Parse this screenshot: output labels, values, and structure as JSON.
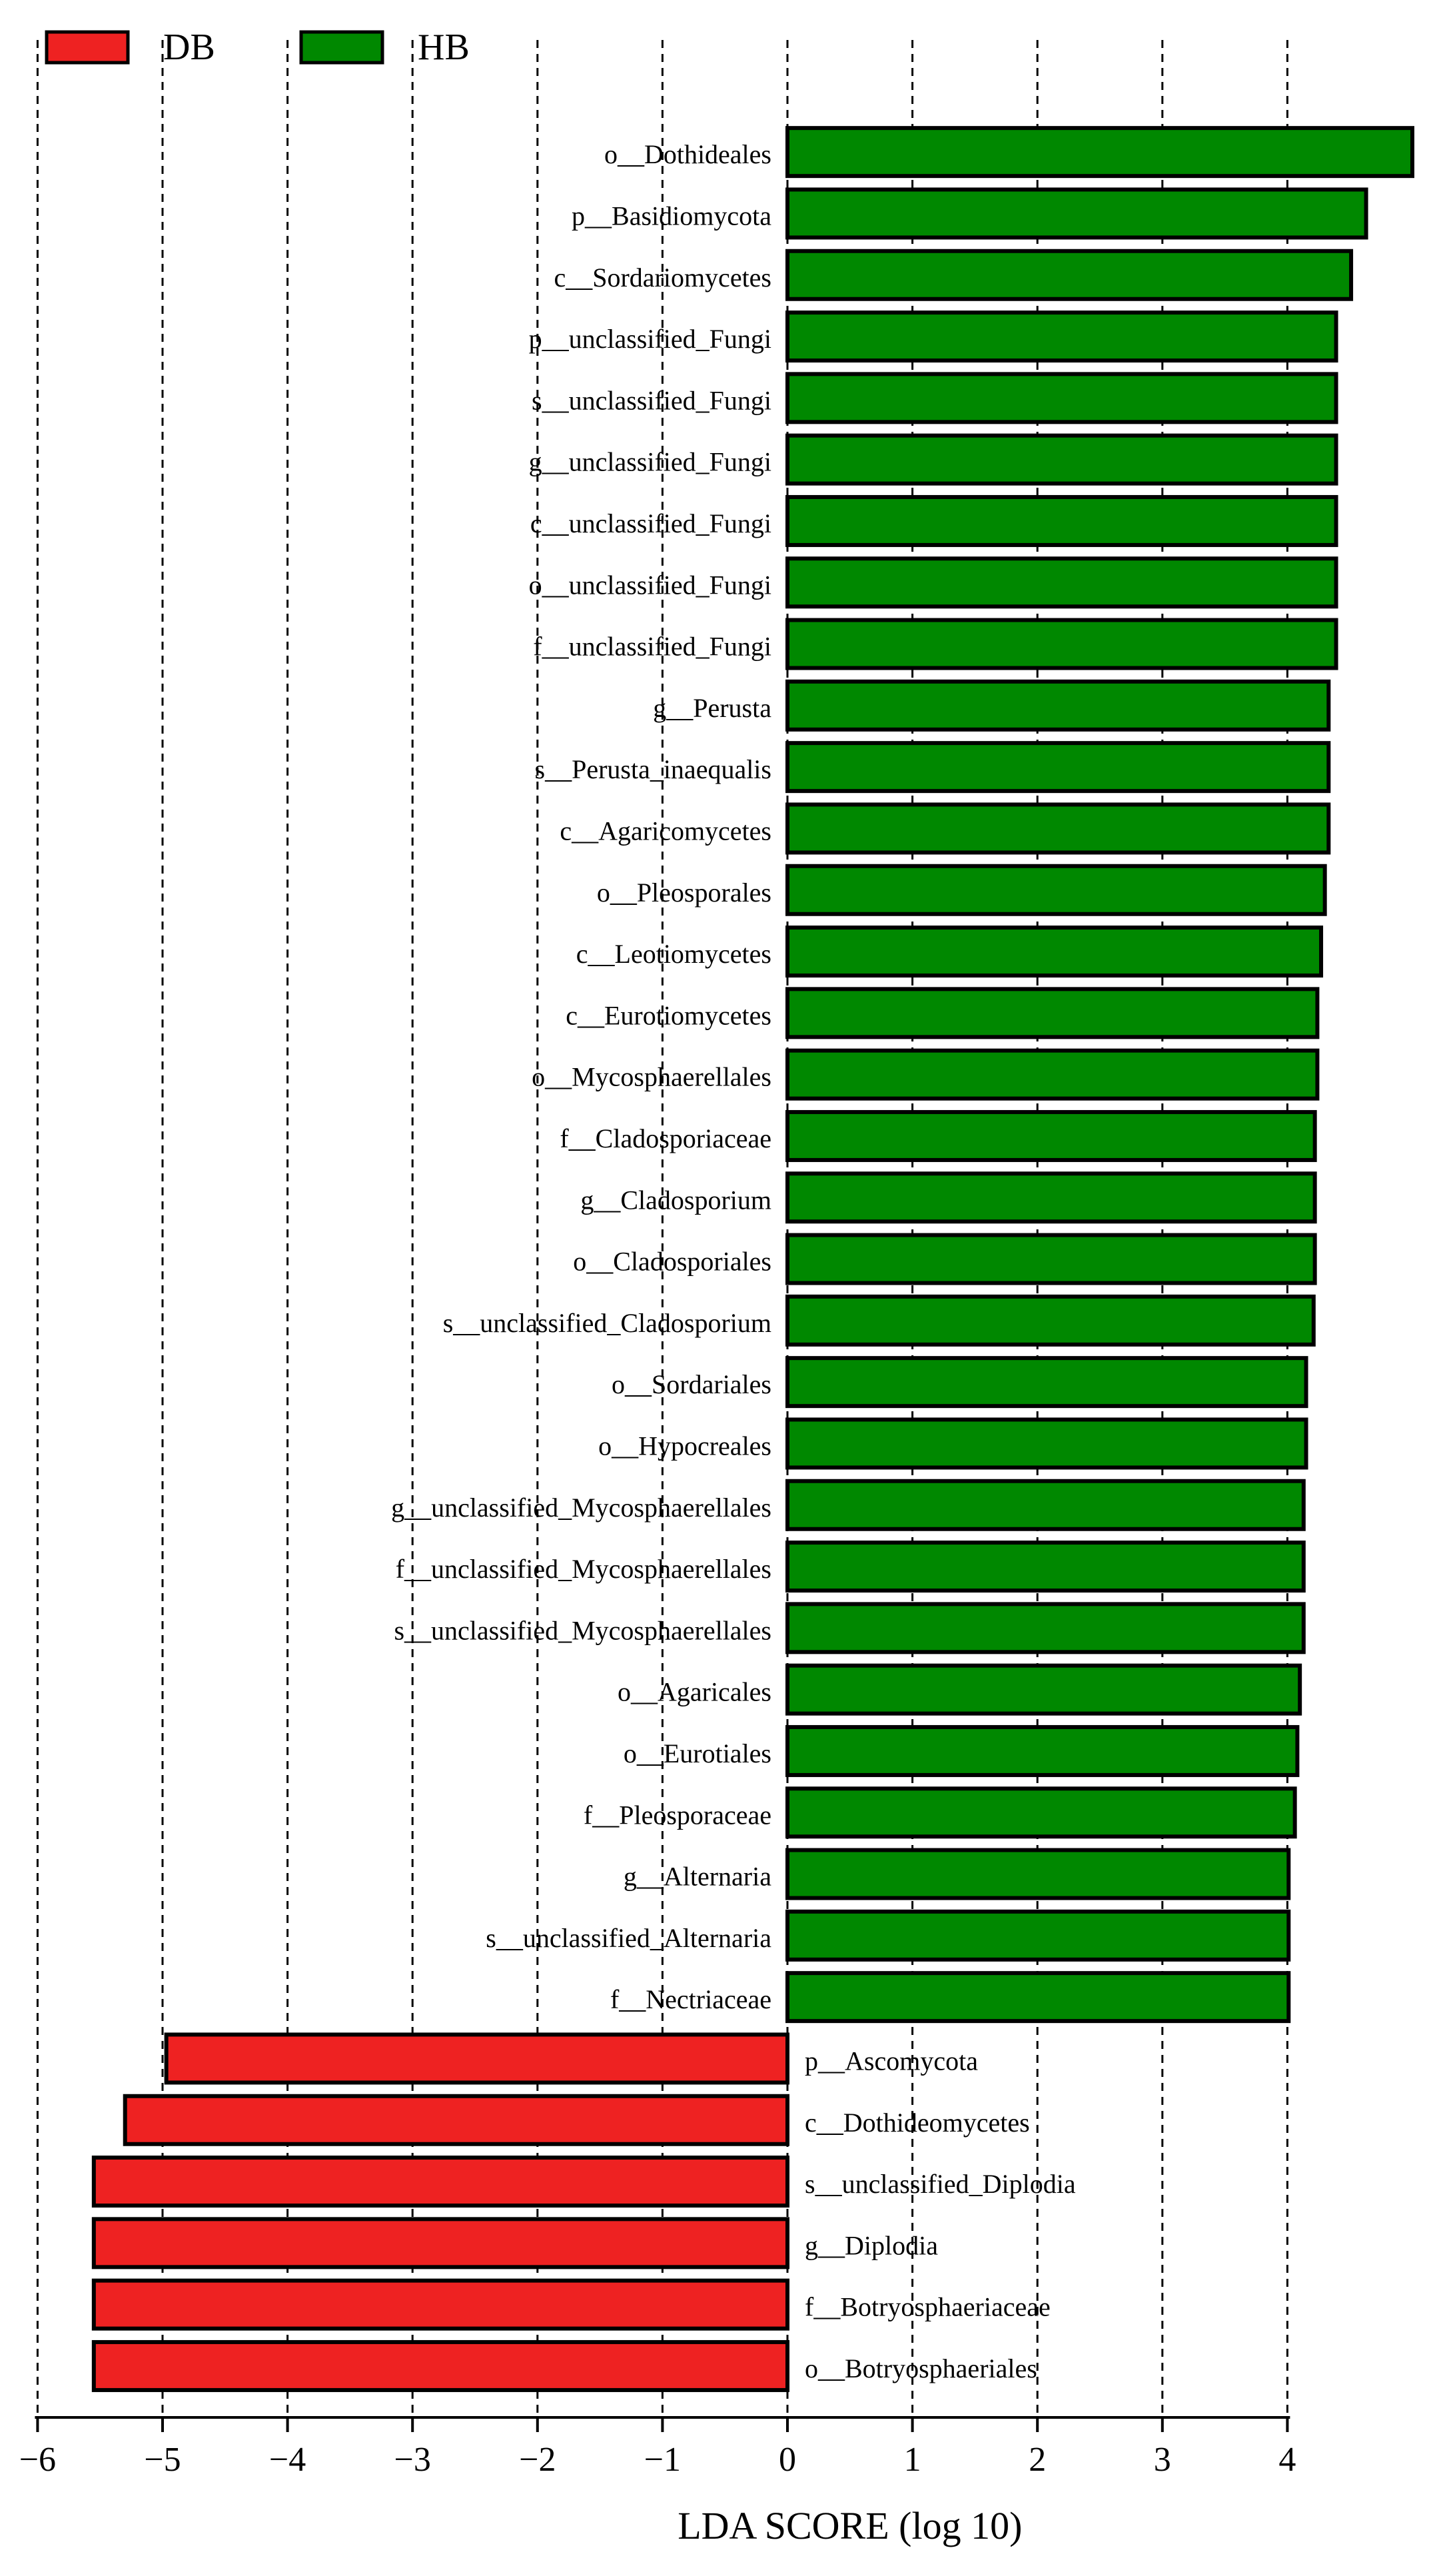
{
  "chart_data": {
    "type": "bar",
    "orientation": "horizontal",
    "xlabel": "LDA SCORE (log 10)",
    "xlim": [
      -6,
      5
    ],
    "xticks": [
      -6,
      -5,
      -4,
      -3,
      -2,
      -1,
      0,
      1,
      2,
      3,
      4
    ],
    "grid": "vertical dashed",
    "legend": [
      {
        "name": "DB",
        "color": "#ee2222"
      },
      {
        "name": "HB",
        "color": "#008800"
      }
    ],
    "legend_position": "top-left",
    "categories": [
      "o__Dothideales",
      "p__Basidiomycota",
      "c__Sordariomycetes",
      "p__unclassified_Fungi",
      "s__unclassified_Fungi",
      "g__unclassified_Fungi",
      "c__unclassified_Fungi",
      "o__unclassified_Fungi",
      "f__unclassified_Fungi",
      "g__Perusta",
      "s__Perusta_inaequalis",
      "c__Agaricomycetes",
      "o__Pleosporales",
      "c__Leotiomycetes",
      "c__Eurotiomycetes",
      "o__Mycosphaerellales",
      "f__Cladosporiaceae",
      "g__Cladosporium",
      "o__Cladosporiales",
      "s__unclassified_Cladosporium",
      "o__Sordariales",
      "o__Hypocreales",
      "g__unclassified_Mycosphaerellales",
      "f__unclassified_Mycosphaerellales",
      "s__unclassified_Mycosphaerellales",
      "o__Agaricales",
      "o__Eurotiales",
      "f__Pleosporaceae",
      "g__Alternaria",
      "s__unclassified_Alternaria",
      "f__Nectriaceae",
      "p__Ascomycota",
      "c__Dothideomycetes",
      "s__unclassified_Diplodia",
      "g__Diplodia",
      "f__Botryosphaeriaceae",
      "o__Botryosphaeriales"
    ],
    "values": [
      5.0,
      4.63,
      4.51,
      4.39,
      4.39,
      4.39,
      4.39,
      4.39,
      4.39,
      4.33,
      4.33,
      4.33,
      4.3,
      4.27,
      4.24,
      4.24,
      4.22,
      4.22,
      4.22,
      4.21,
      4.15,
      4.15,
      4.13,
      4.13,
      4.13,
      4.1,
      4.08,
      4.06,
      4.01,
      4.01,
      4.01,
      -4.97,
      -5.3,
      -5.55,
      -5.55,
      -5.55,
      -5.55
    ],
    "groups": [
      "HB",
      "HB",
      "HB",
      "HB",
      "HB",
      "HB",
      "HB",
      "HB",
      "HB",
      "HB",
      "HB",
      "HB",
      "HB",
      "HB",
      "HB",
      "HB",
      "HB",
      "HB",
      "HB",
      "HB",
      "HB",
      "HB",
      "HB",
      "HB",
      "HB",
      "HB",
      "HB",
      "HB",
      "HB",
      "HB",
      "HB",
      "DB",
      "DB",
      "DB",
      "DB",
      "DB",
      "DB"
    ]
  }
}
